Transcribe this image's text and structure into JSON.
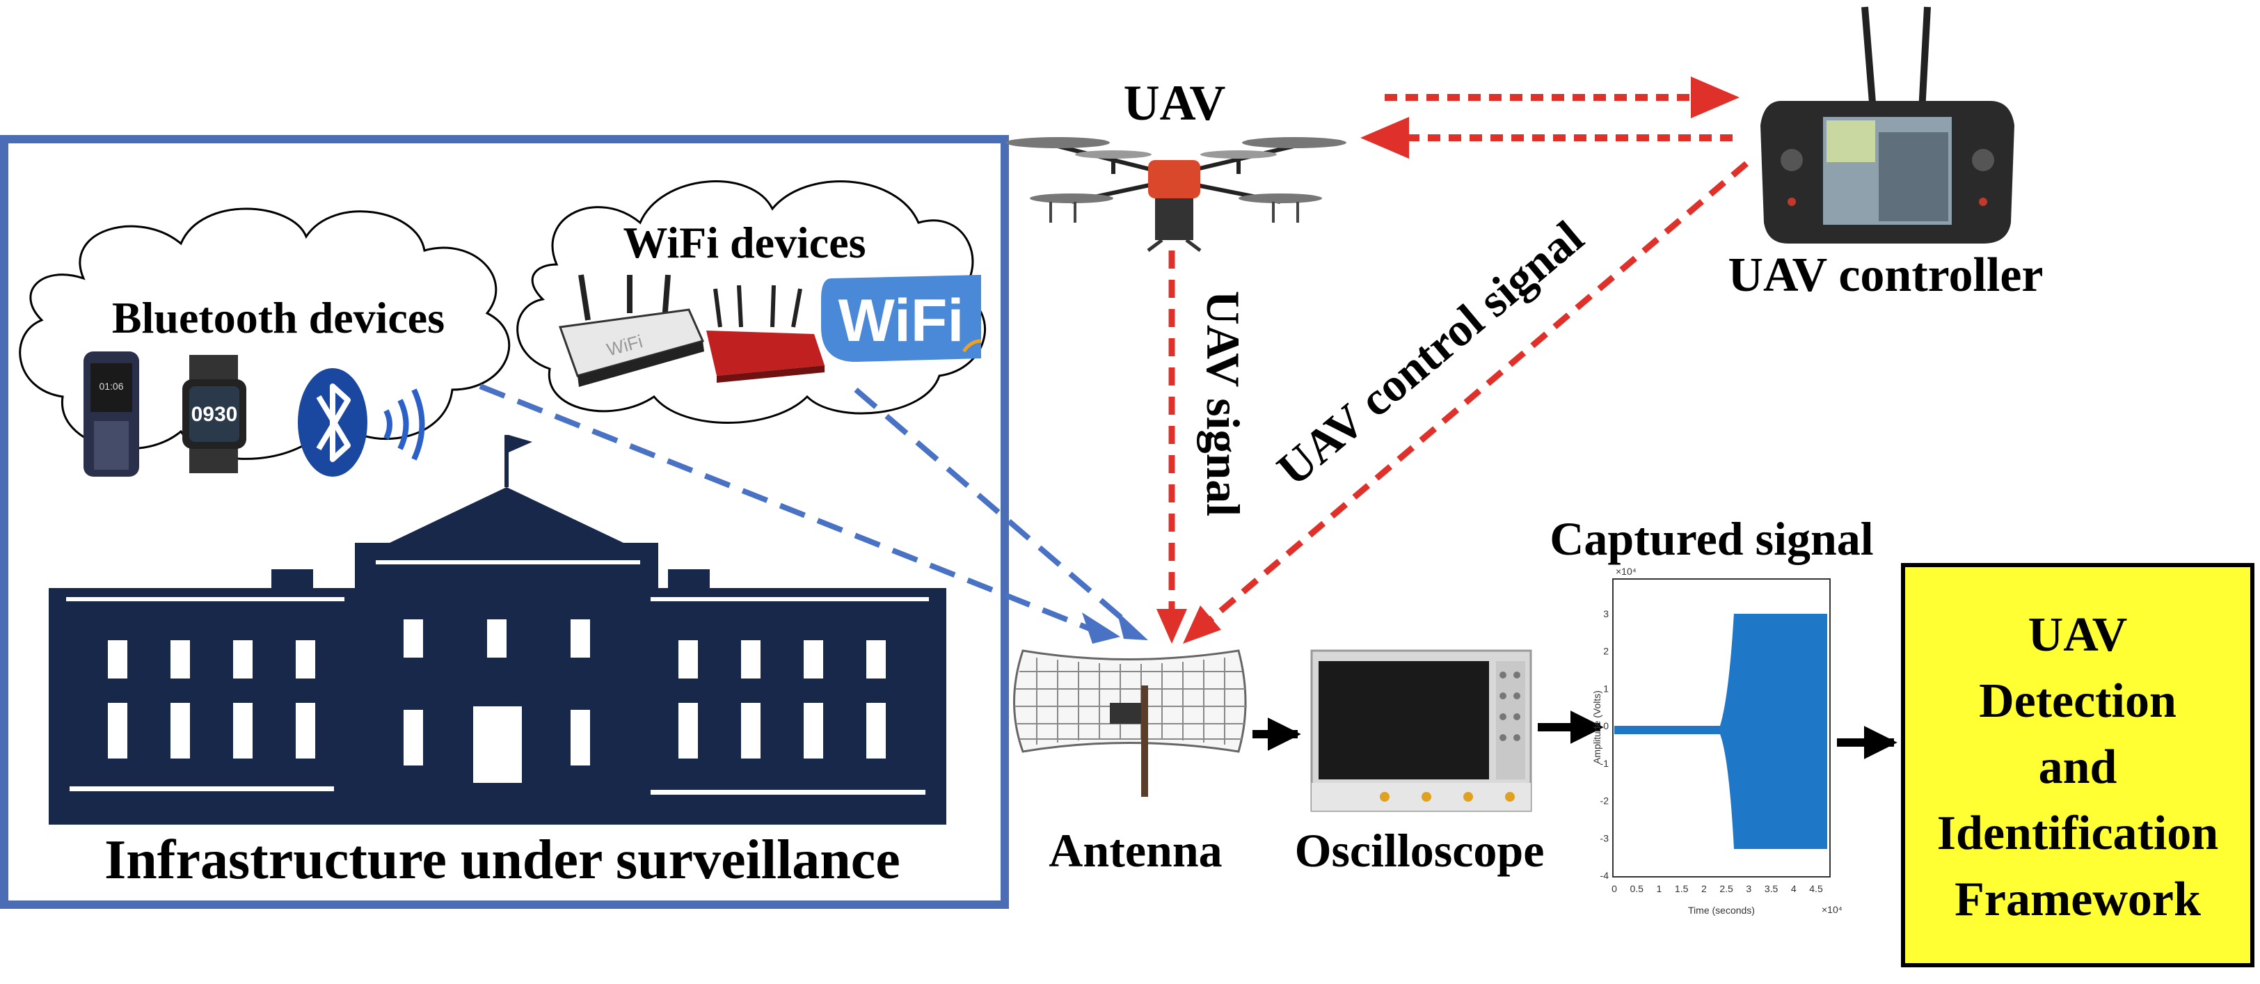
{
  "colors": {
    "infra_border": "#4a6db5",
    "building": "#17284a",
    "blue_dash": "#4a72c4",
    "red_dash": "#e0302a",
    "red_arrow": "#e0302a",
    "framework_fill": "#ffff33",
    "signal": "#1f77c8"
  },
  "labels": {
    "uav": "UAV",
    "uav_controller": "UAV controller",
    "uav_signal": "UAV signal",
    "uav_control_signal": "UAV control signal",
    "bluetooth_devices": "Bluetooth devices",
    "wifi_devices": "WiFi devices",
    "infrastructure": "Infrastructure under surveillance",
    "antenna": "Antenna",
    "oscilloscope": "Oscilloscope",
    "captured_signal": "Captured signal"
  },
  "framework_lines": [
    "UAV",
    "Detection",
    "and",
    "Identification",
    "Framework"
  ],
  "devices": {
    "wifi_logo": "WiFi",
    "router_text": "WiFi",
    "watch_time": "0930",
    "phone_time": "01:06"
  },
  "plot": {
    "exponent_y": "×10⁴",
    "exponent_x": "×10⁴",
    "ylabel": "Amplitude (Volts)",
    "xlabel": "Time (seconds)",
    "yticks": [
      "3",
      "2",
      "1",
      "0",
      "-1",
      "-2",
      "-3",
      "-4"
    ],
    "xticks": [
      "0",
      "0.5",
      "1",
      "1.5",
      "2",
      "2.5",
      "3",
      "3.5",
      "4",
      "4.5"
    ]
  },
  "icons": [
    "drone-icon",
    "controller-icon",
    "antenna-icon",
    "oscilloscope-icon",
    "router-icon",
    "bluetooth-icon",
    "phone-icon",
    "watch-icon",
    "wifi-logo-icon",
    "building-icon"
  ]
}
